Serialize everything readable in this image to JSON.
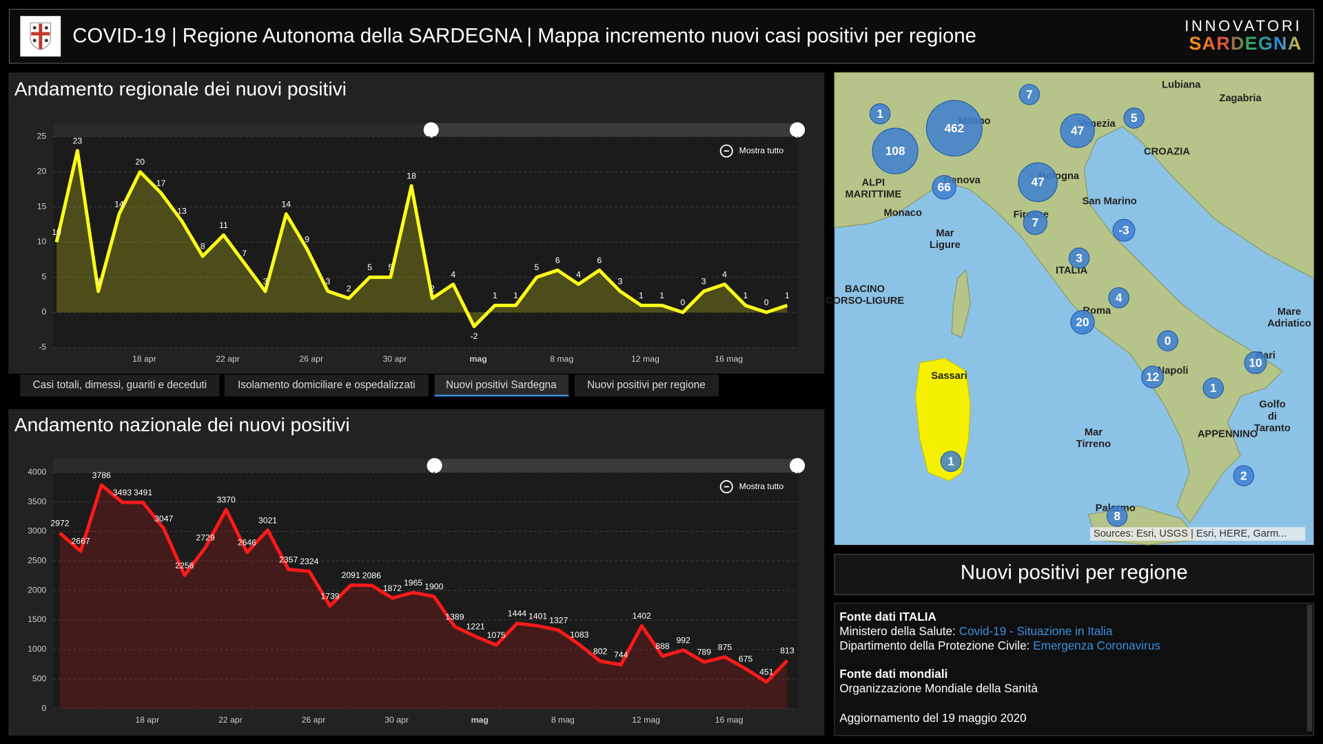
{
  "header": {
    "title": "COVID-19 | Regione Autonoma della SARDEGNA | Mappa incremento nuovi casi positivi per regione",
    "brand_top": "INNOVATORI",
    "brand_bottom": "SARDEGNA"
  },
  "chart_data": [
    {
      "type": "line",
      "title": "Andamento regionale dei nuovi positivi",
      "zoom_label": "Mostra tutto",
      "categories": [
        null,
        null,
        null,
        null,
        "18 apr",
        null,
        null,
        null,
        "22 apr",
        null,
        null,
        null,
        "26 apr",
        null,
        null,
        null,
        "30 apr",
        null,
        null,
        null,
        "mag",
        null,
        null,
        null,
        "8 mag",
        null,
        null,
        null,
        "12 mag",
        null,
        null,
        null,
        "16 mag",
        null,
        null,
        null
      ],
      "values": [
        10,
        23,
        3,
        14,
        20,
        17,
        13,
        8,
        11,
        7,
        3,
        14,
        9,
        3,
        2,
        5,
        5,
        18,
        2,
        4,
        -2,
        1,
        1,
        5,
        6,
        4,
        6,
        3,
        1,
        1,
        0,
        3,
        4,
        1,
        0,
        1
      ],
      "color": "#ffff1a",
      "ylim": [
        -5,
        25
      ],
      "yticks": [
        -5,
        0,
        5,
        10,
        15,
        20,
        25
      ],
      "grid": true
    },
    {
      "type": "line",
      "title": "Andamento nazionale dei nuovi positivi",
      "zoom_label": "Mostra tutto",
      "categories": [
        null,
        null,
        null,
        null,
        "18 apr",
        null,
        null,
        null,
        "22 apr",
        null,
        null,
        null,
        "26 apr",
        null,
        null,
        null,
        "30 apr",
        null,
        null,
        null,
        "mag",
        null,
        null,
        null,
        "8 mag",
        null,
        null,
        null,
        "12 mag",
        null,
        null,
        null,
        "16 mag",
        null,
        null,
        null
      ],
      "values": [
        2972,
        2667,
        3786,
        3493,
        3491,
        3047,
        2256,
        2729,
        3370,
        2646,
        3021,
        2357,
        2324,
        1739,
        2091,
        2086,
        1872,
        1965,
        1900,
        1389,
        1221,
        1075,
        1444,
        1401,
        1327,
        1083,
        802,
        744,
        1402,
        888,
        992,
        789,
        875,
        675,
        451,
        813
      ],
      "color": "#ff1a1a",
      "ylim": [
        0,
        4000
      ],
      "yticks": [
        0,
        500,
        1000,
        1500,
        2000,
        2500,
        3000,
        3500,
        4000
      ],
      "grid": true
    }
  ],
  "tabs": [
    "Casi totali, dimessi, guariti e deceduti",
    "Isolamento domiciliare e ospedalizzati",
    "Nuovi positivi Sardegna",
    "Nuovi positivi per regione"
  ],
  "map": {
    "clusters": [
      "462",
      "108",
      "47",
      "47",
      "66",
      "7",
      "1",
      "5",
      "7",
      "-3",
      "3",
      "4",
      "20",
      "0",
      "12",
      "10",
      "1",
      "1",
      "2",
      "8"
    ],
    "places": [
      [
        "Lubiana"
      ],
      [
        "Zagabria"
      ],
      [
        "CROAZIA"
      ],
      [
        "Milano"
      ],
      [
        "Venezia"
      ],
      [
        "Bologna"
      ],
      [
        "Genova"
      ],
      [
        "San Marino"
      ],
      [
        "Monaco"
      ],
      [
        "Firenze"
      ],
      [
        "ITALIA"
      ],
      [
        "Roma"
      ],
      [
        "Napoli"
      ],
      [
        "Bari"
      ],
      [
        "Palermo"
      ],
      [
        "Mar",
        "Ligure"
      ],
      [
        "Mar",
        "Tirreno"
      ],
      [
        "Mare",
        "Adriatico"
      ],
      [
        "BACINO",
        "CORSO-LIGURE"
      ],
      [
        "Golfo",
        "di",
        "Taranto"
      ],
      [
        "ALPI",
        "MARITTIME"
      ],
      [
        "APPENNINO"
      ],
      [
        "Sassari"
      ]
    ],
    "attribution": "Sources: Esri, USGS | Esri, HERE, Garm..."
  },
  "legend_title": "Nuovi positivi per regione",
  "sources": {
    "italy_heading": "Fonte dati ITALIA",
    "ministry_label": "Ministero della Salute:",
    "ministry_link": "Covid-19 - Situazione in Italia",
    "dpc_label": "Dipartimento della Protezione Civile:",
    "dpc_link": "Emergenza Coronavirus",
    "world_heading": "Fonte dati mondiali",
    "world_source": "Organizzazione Mondiale della Sanità",
    "updated": "Aggiornamento del 19 maggio 2020"
  }
}
